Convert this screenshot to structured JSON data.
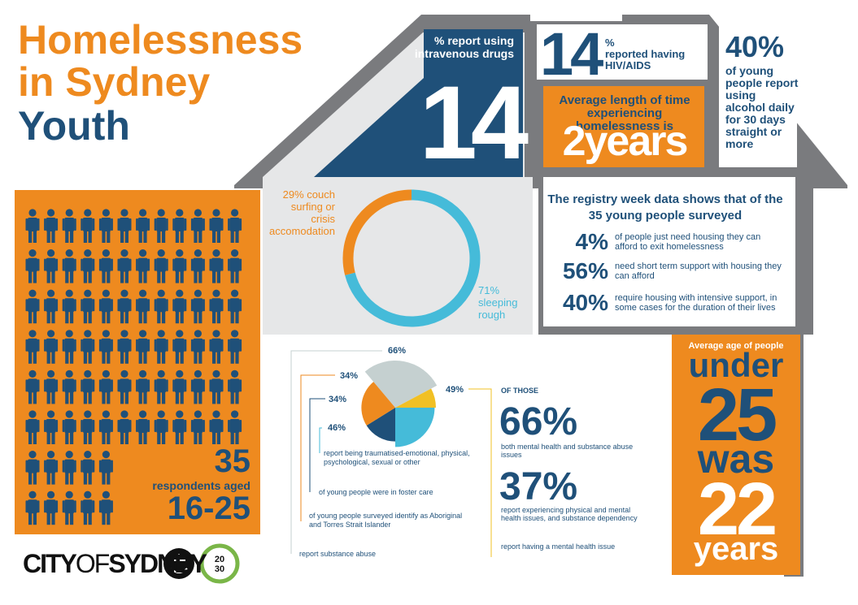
{
  "title": {
    "line1": "Homelessness",
    "line2": "in Sydney",
    "line3": "Youth"
  },
  "colors": {
    "orange": "#ee8a1f",
    "navy": "#1f5079",
    "gray": "#7a7b7e",
    "light_gray": "#e6e7e8",
    "cyan": "#45bbd9",
    "gold": "#f1c025",
    "pale": "#c5d0d0"
  },
  "drugs": {
    "label": "% report using intravenous drugs",
    "value": "14"
  },
  "hiv": {
    "value": "14",
    "pct_sign": "%",
    "label": "reported having HIV/AIDS"
  },
  "avg_time": {
    "label": "Average length of time experiencing homelessness is",
    "value": "2years"
  },
  "alcohol": {
    "value": "40%",
    "label": "of young people report using alcohol daily for 30 days straight or more"
  },
  "registry": {
    "title": "The registry week data shows that of the 35 young people surveyed",
    "items": [
      {
        "pct": "4%",
        "desc": "of people just need housing they can afford to exit homelessness"
      },
      {
        "pct": "56%",
        "desc": "need short term support with housing they can afford"
      },
      {
        "pct": "40%",
        "desc": "require housing with intensive support, in some cases for the duration of their lives"
      }
    ]
  },
  "respondents": {
    "count": "35",
    "label": "respondents aged",
    "range": "16-25",
    "icon": "person-icon"
  },
  "age": {
    "label": "Average age of people",
    "under": "under",
    "age_limit": "25",
    "was": "was",
    "average": "22",
    "unit": "years"
  },
  "chart_data": [
    {
      "type": "pie",
      "labels": [
        "29% couch surfing or crisis accomodation",
        "71% sleeping rough"
      ],
      "values": [
        29,
        71
      ]
    },
    {
      "type": "pie",
      "labels": [
        "66%",
        "49%",
        "46%",
        "34%",
        "34%"
      ],
      "values": [
        66,
        49,
        46,
        34,
        34
      ],
      "series_colors": [
        "#c5d0d0",
        "#f1c025",
        "#45bbd9",
        "#1f5079",
        "#ee8a1f"
      ]
    }
  ],
  "annotations": {
    "a46": "report being traumatised-emotional, physical, psychological, sexual or other",
    "a34navy": "of young people were in foster care",
    "a34orange": "of young people surveyed identify as Aboriginal and Torres Strait Islander",
    "a66": "report substance abuse",
    "a49": "report having a mental health issue"
  },
  "of_those": {
    "label": "OF THOSE",
    "items": [
      {
        "pct": "66%",
        "desc": "both mental health and substance abuse issues"
      },
      {
        "pct": "37%",
        "desc": "report experiencing physical and mental health issues, and substance dependency"
      }
    ]
  },
  "logo": {
    "city": "CITY",
    "of": "OF",
    "sydney": "SYDNEY",
    "badge_top": "20",
    "badge_bottom": "30"
  }
}
